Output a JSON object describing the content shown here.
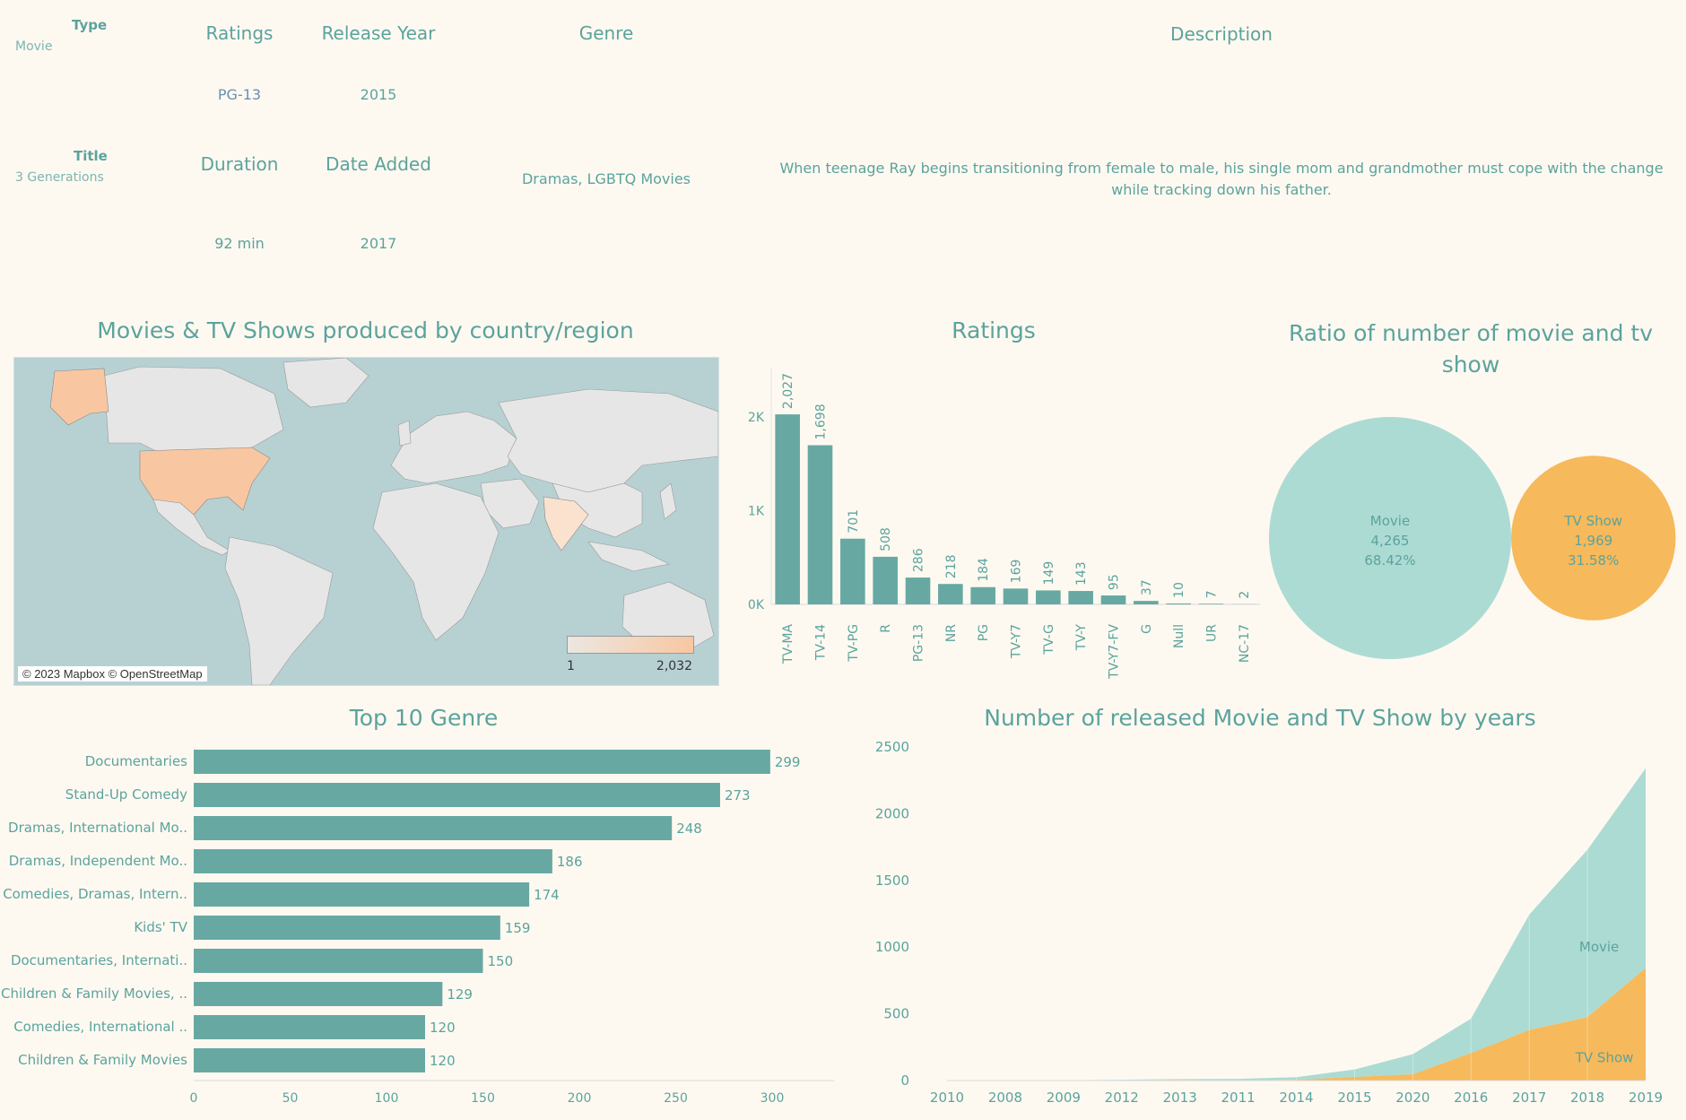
{
  "detail": {
    "type_label": "Type",
    "type_value": "Movie",
    "title_label": "Title",
    "title_value": "3 Generations",
    "ratings_label": "Ratings",
    "ratings_value": "PG-13",
    "release_year_label": "Release Year",
    "release_year_value": "2015",
    "duration_label": "Duration",
    "duration_value": "92 min",
    "date_added_label": "Date Added",
    "date_added_value": "2017",
    "genre_label": "Genre",
    "genre_value": "Dramas, LGBTQ Movies",
    "description_label": "Description",
    "description_value": "When teenage Ray begins transitioning from female to male, his single mom and grandmother must cope with the change while tracking down his father."
  },
  "map": {
    "title": "Movies & TV Shows produced by country/region",
    "credit": "© 2023 Mapbox © OpenStreetMap",
    "legend_min": "1",
    "legend_max": "2,032",
    "colors": {
      "low": "#ece7e1",
      "high": "#f8c7a1",
      "water": "#b7d1d3",
      "land": "#e6e6e6"
    }
  },
  "chart_data": [
    {
      "type": "bar",
      "title": "Ratings",
      "categories": [
        "TV-MA",
        "TV-14",
        "TV-PG",
        "R",
        "PG-13",
        "NR",
        "PG",
        "TV-Y7",
        "TV-G",
        "TV-Y",
        "TV-Y7-FV",
        "G",
        "Null",
        "UR",
        "NC-17"
      ],
      "values": [
        2027,
        1698,
        701,
        508,
        286,
        218,
        184,
        169,
        149,
        143,
        95,
        37,
        10,
        7,
        2
      ],
      "data_labels": [
        "2,027",
        "1,698",
        "701",
        "508",
        "286",
        "218",
        "184",
        "169",
        "149",
        "143",
        "95",
        "37",
        "10",
        "7",
        "2"
      ],
      "yticks": [
        "0K",
        "1K",
        "2K"
      ],
      "ylim": [
        0,
        2200
      ],
      "color": "#67a9a2"
    },
    {
      "type": "pie",
      "title": "Ratio of number of movie and tv show",
      "slices": [
        {
          "name": "Movie",
          "count": "4,265",
          "percent": "68.42%",
          "value": 4265,
          "color": "#acdbd3"
        },
        {
          "name": "TV Show",
          "count": "1,969",
          "percent": "31.58%",
          "value": 1969,
          "color": "#f6b95b"
        }
      ]
    },
    {
      "type": "bar",
      "orientation": "horizontal",
      "title": "Top 10 Genre",
      "categories": [
        "Documentaries",
        "Stand-Up Comedy",
        "Dramas, International Mo..",
        "Dramas, Independent Mo..",
        "Comedies, Dramas, Intern..",
        "Kids' TV",
        "Documentaries, Internati..",
        "Children & Family Movies, ..",
        "Comedies, International ..",
        "Children & Family Movies"
      ],
      "values": [
        299,
        273,
        248,
        186,
        174,
        159,
        150,
        129,
        120,
        120
      ],
      "xticks": [
        "0",
        "50",
        "100",
        "150",
        "200",
        "250",
        "300"
      ],
      "xlim": [
        0,
        330
      ],
      "color": "#67a9a2"
    },
    {
      "type": "area",
      "title": "Number of released Movie and TV Show by years",
      "categories": [
        "2010",
        "2008",
        "2009",
        "2012",
        "2013",
        "2011",
        "2014",
        "2015",
        "2020",
        "2016",
        "2017",
        "2018",
        "2019"
      ],
      "yticks": [
        "0",
        "500",
        "1000",
        "1500",
        "2000",
        "2500"
      ],
      "ylim": [
        0,
        2500
      ],
      "series": [
        {
          "name": "Movie",
          "values": [
            1,
            1,
            2,
            3,
            6,
            13,
            19,
            56,
            150,
            258,
            864,
            1255,
            1497
          ],
          "color": "#acdbd3"
        },
        {
          "name": "TV Show",
          "values": [
            0,
            1,
            0,
            3,
            5,
            0,
            6,
            27,
            47,
            206,
            379,
            475,
            843
          ],
          "color": "#f6b95b"
        }
      ]
    }
  ]
}
